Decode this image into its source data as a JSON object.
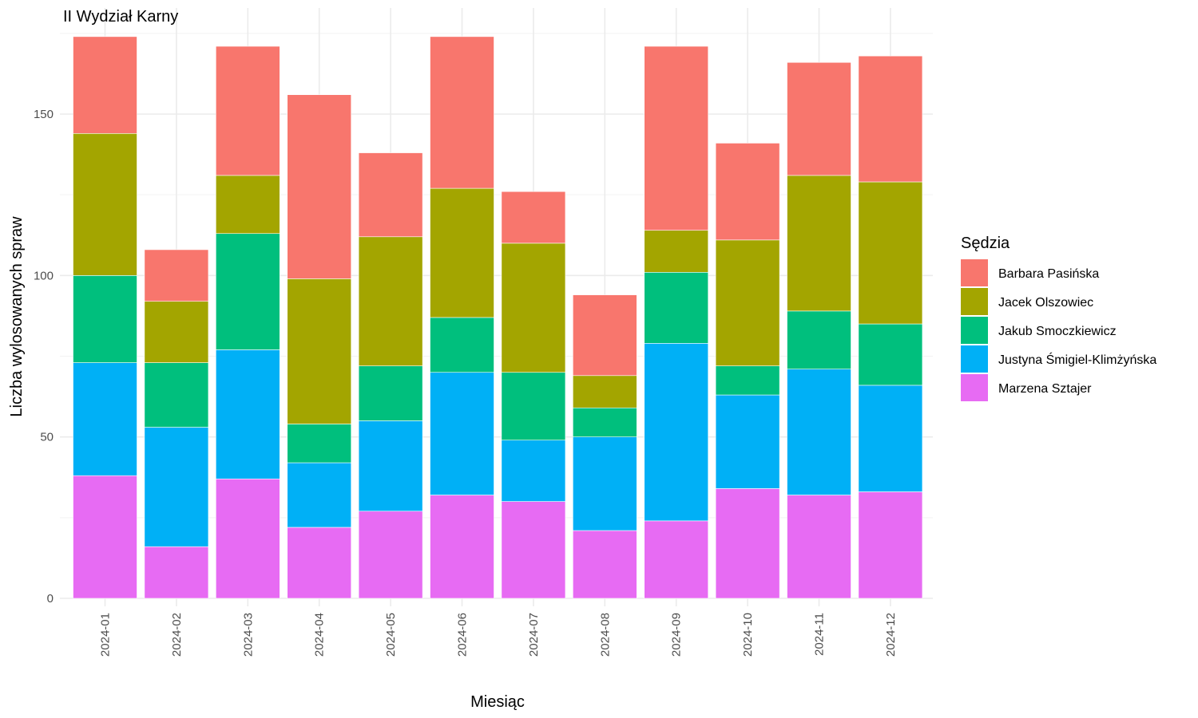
{
  "chart_data": {
    "type": "bar",
    "stacked": true,
    "title": "II Wydział Karny",
    "xlabel": "Miesiąc",
    "ylabel": "Liczba wylosowanych spraw",
    "ylim": [
      0,
      174
    ],
    "yticks": [
      0,
      50,
      100,
      150
    ],
    "grid": true,
    "legend_position": "right",
    "legend_title": "Sędzia",
    "categories": [
      "2024-01",
      "2024-02",
      "2024-03",
      "2024-04",
      "2024-05",
      "2024-06",
      "2024-07",
      "2024-08",
      "2024-09",
      "2024-10",
      "2024-11",
      "2024-12"
    ],
    "series": [
      {
        "name": "Barbara Pasińska",
        "color": "#F8766D",
        "values": [
          30,
          16,
          40,
          57,
          26,
          47,
          16,
          25,
          57,
          30,
          35,
          39
        ]
      },
      {
        "name": "Jacek Olszowiec",
        "color": "#A3A500",
        "values": [
          44,
          19,
          18,
          45,
          40,
          40,
          40,
          10,
          13,
          39,
          42,
          44
        ]
      },
      {
        "name": "Jakub Smoczkiewicz",
        "color": "#00BF7D",
        "values": [
          27,
          20,
          36,
          12,
          17,
          17,
          21,
          9,
          22,
          9,
          18,
          19
        ]
      },
      {
        "name": "Justyna Śmigiel-Klimżyńska",
        "color": "#00B0F6",
        "values": [
          35,
          37,
          40,
          20,
          28,
          38,
          19,
          29,
          55,
          29,
          39,
          33
        ]
      },
      {
        "name": "Marzena Sztajer",
        "color": "#E76BF3",
        "values": [
          38,
          16,
          37,
          22,
          27,
          32,
          30,
          21,
          24,
          34,
          32,
          33
        ]
      }
    ]
  }
}
